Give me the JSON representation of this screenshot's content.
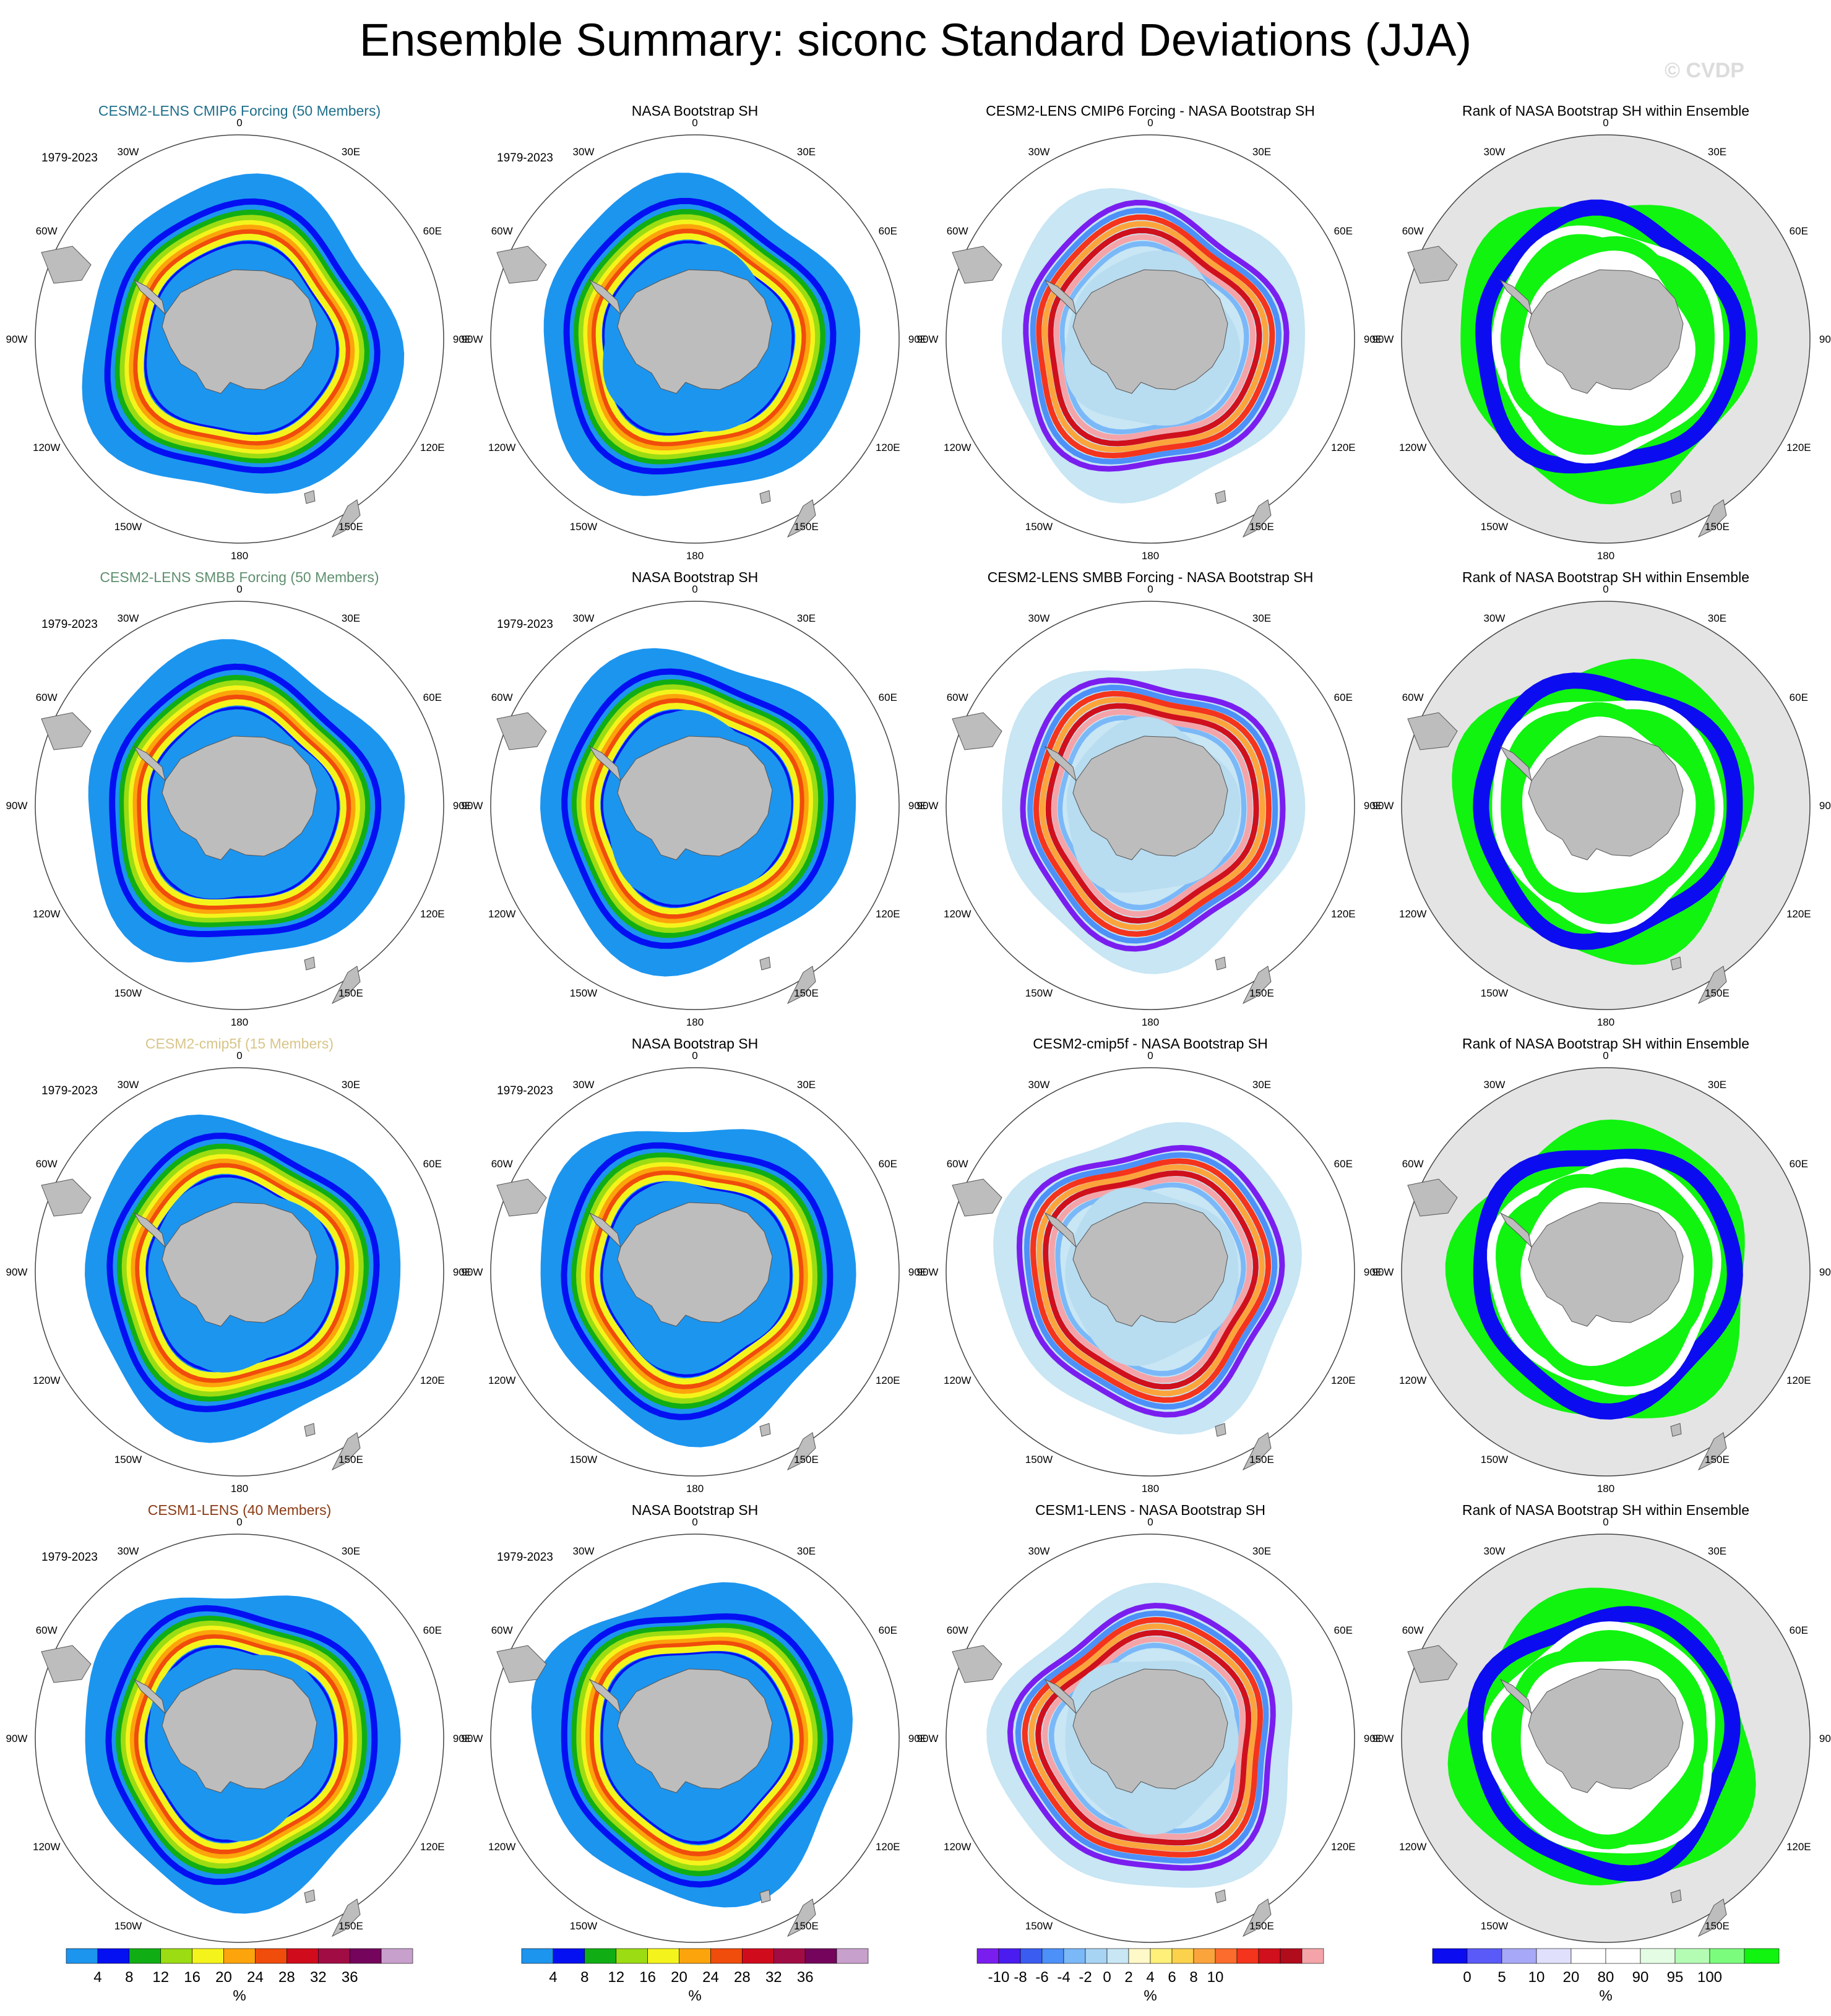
{
  "title": "Ensemble Summary: siconc Standard Deviations (JJA)",
  "watermark": "© CVDP",
  "colors": {
    "land": "#bdbdbd",
    "ocean": "#ffffff",
    "rank_background": "#e4e4e4",
    "std_scale": [
      "#1c95ef",
      "#0410f2",
      "#10ae14",
      "#9cdc12",
      "#f4f41c",
      "#fca40c",
      "#f04c0c",
      "#d00c1c",
      "#a20c44",
      "#74045c",
      "#c8a0cc"
    ],
    "diff_scale": [
      "#7a1ef0",
      "#4a1cf0",
      "#3a5cf0",
      "#4c90f8",
      "#7ab8f8",
      "#a8d4f4",
      "#c8e6f4",
      "#fff8c8",
      "#fff07a",
      "#fcd24c",
      "#fca43c",
      "#fc6c2c",
      "#f4341c",
      "#d0101c",
      "#b00c1c",
      "#f4a4a8"
    ],
    "rank_scale": [
      "#0c0cf0",
      "#5a5af8",
      "#a8a8f8",
      "#e0e0fc",
      "#ffffff",
      "#ffffff",
      "#e4fce4",
      "#b4fcb4",
      "#7cfc7c",
      "#10f410"
    ]
  },
  "period_label": "1979-2023",
  "tick_labels": [
    "0",
    "30E",
    "60E",
    "90E",
    "120E",
    "150E",
    "180",
    "150W",
    "120W",
    "90W",
    "60W",
    "30W"
  ],
  "rows": [
    {
      "model": "CESM2-LENS CMIP6 Forcing (50 Members)",
      "model_color": "#1f6f8b",
      "obs": "NASA Bootstrap SH",
      "diff": "CESM2-LENS CMIP6 Forcing - NASA Bootstrap SH",
      "rank": "Rank of NASA Bootstrap SH within Ensemble",
      "obs_period": true
    },
    {
      "model": "CESM2-LENS SMBB Forcing (50 Members)",
      "model_color": "#5f8f6f",
      "obs": "NASA Bootstrap SH",
      "diff": "CESM2-LENS SMBB Forcing - NASA Bootstrap SH",
      "rank": "Rank of NASA Bootstrap SH within Ensemble",
      "obs_period": true
    },
    {
      "model": "CESM2-cmip5f (15 Members)",
      "model_color": "#d8c58a",
      "obs": "NASA Bootstrap SH",
      "diff": "CESM2-cmip5f - NASA Bootstrap SH",
      "rank": "Rank of NASA Bootstrap SH within Ensemble",
      "obs_period": true
    },
    {
      "model": "CESM1-LENS (40 Members)",
      "model_color": "#8a3a14",
      "obs": "NASA Bootstrap SH",
      "diff": "CESM1-LENS - NASA Bootstrap SH",
      "rank": "Rank of NASA Bootstrap SH within Ensemble",
      "obs_period": true
    }
  ],
  "colorbars": [
    {
      "labels": [
        "4",
        "8",
        "12",
        "16",
        "20",
        "24",
        "28",
        "32",
        "36"
      ],
      "unit": "%"
    },
    {
      "labels": [
        "4",
        "8",
        "12",
        "16",
        "20",
        "24",
        "28",
        "32",
        "36"
      ],
      "unit": "%"
    },
    {
      "labels": [
        "-10",
        "-8",
        "-6",
        "-4",
        "-2",
        "0",
        "2",
        "4",
        "6",
        "8",
        "10"
      ],
      "unit": "%"
    },
    {
      "labels": [
        "0",
        "5",
        "10",
        "20",
        "80",
        "90",
        "95",
        "100"
      ],
      "unit": "%"
    }
  ],
  "chart_data": {
    "type": "heatmap",
    "projection": "south polar stereographic",
    "variable": "siconc",
    "season": "JJA",
    "std_levels": [
      4,
      8,
      12,
      16,
      20,
      24,
      28,
      32,
      36
    ],
    "diff_levels": [
      -10,
      -8,
      -6,
      -4,
      -2,
      0,
      2,
      4,
      6,
      8,
      10
    ],
    "rank_levels": [
      0,
      5,
      10,
      20,
      80,
      90,
      95,
      100
    ],
    "units": "%"
  }
}
